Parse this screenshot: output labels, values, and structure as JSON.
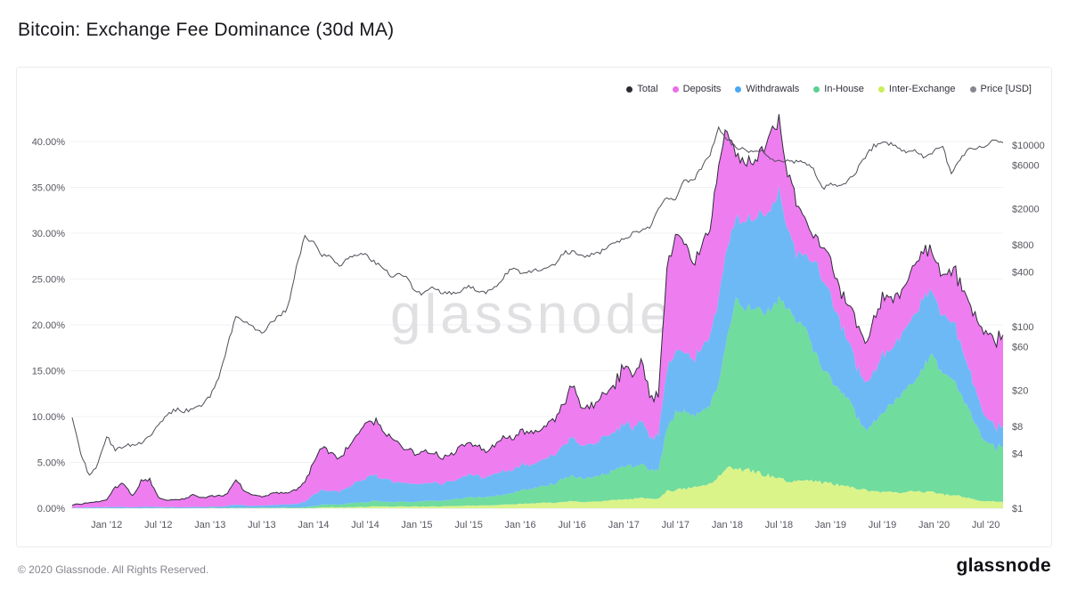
{
  "page": {
    "title": "Bitcoin: Exchange Fee Dominance (30d MA)",
    "watermark": "glassnode",
    "footer_copyright": "© 2020 Glassnode. All Rights Reserved.",
    "footer_logo": "glassnode"
  },
  "chart_data": {
    "type": "area",
    "stacked": true,
    "title": "Bitcoin: Exchange Fee Dominance (30d MA)",
    "x_start": "2011-09",
    "x_end": "2020-09",
    "x_interval": "monthly",
    "x_tick_labels": [
      "Jan '12",
      "Jul '12",
      "Jan '13",
      "Jul '13",
      "Jan '14",
      "Jul '14",
      "Jan '15",
      "Jul '15",
      "Jan '16",
      "Jul '16",
      "Jan '17",
      "Jul '17",
      "Jan '18",
      "Jul '18",
      "Jan '19",
      "Jul '19",
      "Jan '20",
      "Jul '20"
    ],
    "y_left": {
      "unit": "%",
      "min": 0,
      "max": 40,
      "grid": true,
      "ticks": [
        {
          "value": 0,
          "label": "0.00%"
        },
        {
          "value": 5,
          "label": "5.00%"
        },
        {
          "value": 10,
          "label": "10.00%"
        },
        {
          "value": 15,
          "label": "15.00%"
        },
        {
          "value": 20,
          "label": "20.00%"
        },
        {
          "value": 25,
          "label": "25.00%"
        },
        {
          "value": 30,
          "label": "30.00%"
        },
        {
          "value": 35,
          "label": "35.00%"
        },
        {
          "value": 40,
          "label": "40.00%"
        }
      ]
    },
    "y_right": {
      "unit": "USD",
      "scale": "log",
      "min": 1,
      "max": 10000,
      "ticks": [
        {
          "value": 1,
          "label": "$1"
        },
        {
          "value": 4,
          "label": "$4"
        },
        {
          "value": 8,
          "label": "$8"
        },
        {
          "value": 20,
          "label": "$20"
        },
        {
          "value": 60,
          "label": "$60"
        },
        {
          "value": 100,
          "label": "$100"
        },
        {
          "value": 400,
          "label": "$400"
        },
        {
          "value": 800,
          "label": "$800"
        },
        {
          "value": 2000,
          "label": "$2000"
        },
        {
          "value": 6000,
          "label": "$6000"
        },
        {
          "value": 10000,
          "label": "$10000"
        }
      ]
    },
    "legend": [
      {
        "label": "Total",
        "color": "#2b2b33"
      },
      {
        "label": "Deposits",
        "color": "#e96fe9"
      },
      {
        "label": "Withdrawals",
        "color": "#4aa8f5"
      },
      {
        "label": "In-House",
        "color": "#5bd18f"
      },
      {
        "label": "Inter-Exchange",
        "color": "#c9ef5b"
      },
      {
        "label": "Price [USD]",
        "color": "#87878f"
      }
    ],
    "series": [
      {
        "name": "Inter-Exchange",
        "type": "area",
        "axis": "left",
        "color": "#daf489",
        "values": [
          0,
          0,
          0,
          0,
          0,
          0,
          0,
          0,
          0,
          0,
          0,
          0,
          0,
          0,
          0,
          0,
          0,
          0,
          0,
          0,
          0,
          0,
          0,
          0,
          0,
          0,
          0,
          0,
          0.05,
          0.1,
          0.1,
          0.1,
          0.1,
          0.15,
          0.15,
          0.2,
          0.2,
          0.2,
          0.2,
          0.2,
          0.2,
          0.2,
          0.2,
          0.2,
          0.25,
          0.25,
          0.3,
          0.3,
          0.3,
          0.35,
          0.4,
          0.4,
          0.5,
          0.5,
          0.55,
          0.6,
          0.6,
          0.7,
          0.8,
          0.7,
          0.7,
          0.75,
          0.8,
          0.9,
          1.0,
          1.0,
          1.1,
          1.0,
          1.1,
          1.9,
          2.0,
          2.1,
          2.2,
          2.4,
          2.6,
          3.5,
          4.3,
          4.5,
          4.2,
          4.0,
          3.8,
          3.5,
          3.2,
          3.0,
          2.9,
          3.0,
          3.0,
          2.8,
          2.7,
          2.5,
          2.4,
          2.2,
          2.0,
          1.9,
          1.7,
          1.7,
          1.7,
          1.8,
          1.8,
          1.8,
          1.7,
          1.5,
          1.4,
          1.3,
          1.1,
          0.9,
          0.8,
          0.75,
          0.7
        ]
      },
      {
        "name": "In-House",
        "type": "area",
        "axis": "left",
        "color": "#70dc9d",
        "values": [
          0,
          0,
          0,
          0,
          0,
          0,
          0,
          0,
          0,
          0,
          0,
          0,
          0,
          0,
          0,
          0,
          0.05,
          0.05,
          0.05,
          0.05,
          0.05,
          0.05,
          0.05,
          0.05,
          0.05,
          0.1,
          0.1,
          0.1,
          0.2,
          0.3,
          0.3,
          0.3,
          0.4,
          0.5,
          0.5,
          0.6,
          0.5,
          0.5,
          0.5,
          0.5,
          0.5,
          0.6,
          0.6,
          0.6,
          0.7,
          0.8,
          0.9,
          0.9,
          0.9,
          1.0,
          1.1,
          1.2,
          1.5,
          1.6,
          1.7,
          1.9,
          2.1,
          2.5,
          2.8,
          2.6,
          2.6,
          2.8,
          3.0,
          3.2,
          3.6,
          3.5,
          3.8,
          3.2,
          3.0,
          7.0,
          8.5,
          8.2,
          7.8,
          8.0,
          8.6,
          10.5,
          14.5,
          18.5,
          17.5,
          17.8,
          18.0,
          18.2,
          19.5,
          19.0,
          17.5,
          17.0,
          14.5,
          12.5,
          11.5,
          10.5,
          9.5,
          8.0,
          6.5,
          7.5,
          8.5,
          9.5,
          10.5,
          11.5,
          12.0,
          14.0,
          14.8,
          13.0,
          12.5,
          11.5,
          9.5,
          7.8,
          6.2,
          5.8,
          6.0
        ]
      },
      {
        "name": "Withdrawals",
        "type": "area",
        "axis": "left",
        "color": "#6db9f5",
        "values": [
          0.05,
          0.05,
          0.1,
          0.1,
          0.1,
          0.15,
          0.15,
          0.1,
          0.15,
          0.15,
          0.1,
          0.1,
          0.1,
          0.1,
          0.15,
          0.1,
          0.1,
          0.15,
          0.2,
          0.3,
          0.25,
          0.2,
          0.2,
          0.25,
          0.3,
          0.3,
          0.4,
          0.6,
          1.2,
          1.6,
          1.5,
          1.4,
          1.8,
          2.2,
          2.6,
          2.8,
          2.5,
          2.3,
          2.2,
          2.0,
          1.9,
          2.0,
          2.0,
          1.9,
          2.0,
          2.2,
          2.4,
          2.3,
          2.2,
          2.3,
          2.6,
          2.5,
          2.8,
          2.7,
          2.7,
          2.9,
          3.1,
          3.6,
          4.2,
          3.6,
          3.5,
          3.7,
          4.0,
          4.2,
          4.6,
          4.4,
          4.8,
          3.8,
          3.6,
          6.5,
          6.8,
          6.6,
          6.2,
          6.8,
          7.4,
          9.5,
          10.0,
          9.0,
          9.5,
          10.0,
          10.5,
          11.0,
          11.5,
          9.0,
          7.5,
          8.0,
          9.5,
          10.0,
          9.0,
          7.5,
          6.5,
          5.5,
          5.0,
          5.5,
          6.5,
          6.0,
          6.5,
          7.0,
          7.5,
          7.3,
          7.0,
          6.0,
          6.5,
          5.5,
          4.5,
          3.5,
          2.8,
          2.3,
          2.2
        ]
      },
      {
        "name": "Deposits",
        "type": "area",
        "axis": "left",
        "color": "#ee7df0",
        "values": [
          0.3,
          0.4,
          0.5,
          0.6,
          0.8,
          2.2,
          2.6,
          1.2,
          2.8,
          2.9,
          1.0,
          0.8,
          0.8,
          0.9,
          1.4,
          1.0,
          1.1,
          1.2,
          1.3,
          2.8,
          1.5,
          1.2,
          1.0,
          1.2,
          1.3,
          1.3,
          1.6,
          2.2,
          3.5,
          4.6,
          4.2,
          3.6,
          4.4,
          5.2,
          5.8,
          6.0,
          5.2,
          4.6,
          4.2,
          3.6,
          3.2,
          3.4,
          3.2,
          2.9,
          3.0,
          3.3,
          3.5,
          3.2,
          2.9,
          3.1,
          3.6,
          3.4,
          3.8,
          3.6,
          3.4,
          3.6,
          3.9,
          4.6,
          5.6,
          4.4,
          4.2,
          4.4,
          4.8,
          5.2,
          6.2,
          5.6,
          6.4,
          4.6,
          4.2,
          11.0,
          13.0,
          12.0,
          10.5,
          11.0,
          11.5,
          14.5,
          13.0,
          7.0,
          6.5,
          6.0,
          7.0,
          8.5,
          7.5,
          6.0,
          5.5,
          4.0,
          2.5,
          3.5,
          4.0,
          3.5,
          4.0,
          4.5,
          4.5,
          5.5,
          6.0,
          5.5,
          5.0,
          5.0,
          5.5,
          5.0,
          4.3,
          4.5,
          5.5,
          6.5,
          7.0,
          8.0,
          9.0,
          9.5,
          10.0
        ]
      },
      {
        "name": "Total",
        "type": "line",
        "axis": "left",
        "color": "#2c2c38",
        "derived": "sum_of_areas"
      },
      {
        "name": "Price [USD]",
        "type": "line",
        "axis": "right",
        "color": "#4e4e58",
        "values": [
          9.5,
          4.0,
          2.3,
          3.1,
          6.3,
          4.4,
          4.9,
          5.0,
          5.1,
          6.4,
          8.0,
          11.0,
          12.2,
          11.7,
          12.4,
          13.5,
          17,
          28,
          60,
          135,
          110,
          100,
          85,
          110,
          130,
          160,
          450,
          1000,
          830,
          620,
          590,
          450,
          560,
          620,
          610,
          520,
          440,
          360,
          380,
          330,
          230,
          240,
          270,
          230,
          237,
          245,
          280,
          250,
          235,
          270,
          350,
          430,
          400,
          410,
          415,
          440,
          470,
          650,
          670,
          590,
          605,
          640,
          730,
          870,
          910,
          1050,
          1150,
          1250,
          2000,
          2600,
          2450,
          4200,
          4000,
          5600,
          8000,
          15500,
          11500,
          9300,
          8800,
          8100,
          8600,
          6800,
          6900,
          6600,
          6500,
          6450,
          5400,
          3300,
          3650,
          3700,
          3950,
          5200,
          7300,
          9800,
          10600,
          10300,
          9200,
          8400,
          8700,
          7200,
          8700,
          9600,
          4800,
          7100,
          9200,
          9400,
          9500,
          11400,
          10600
        ]
      }
    ]
  }
}
